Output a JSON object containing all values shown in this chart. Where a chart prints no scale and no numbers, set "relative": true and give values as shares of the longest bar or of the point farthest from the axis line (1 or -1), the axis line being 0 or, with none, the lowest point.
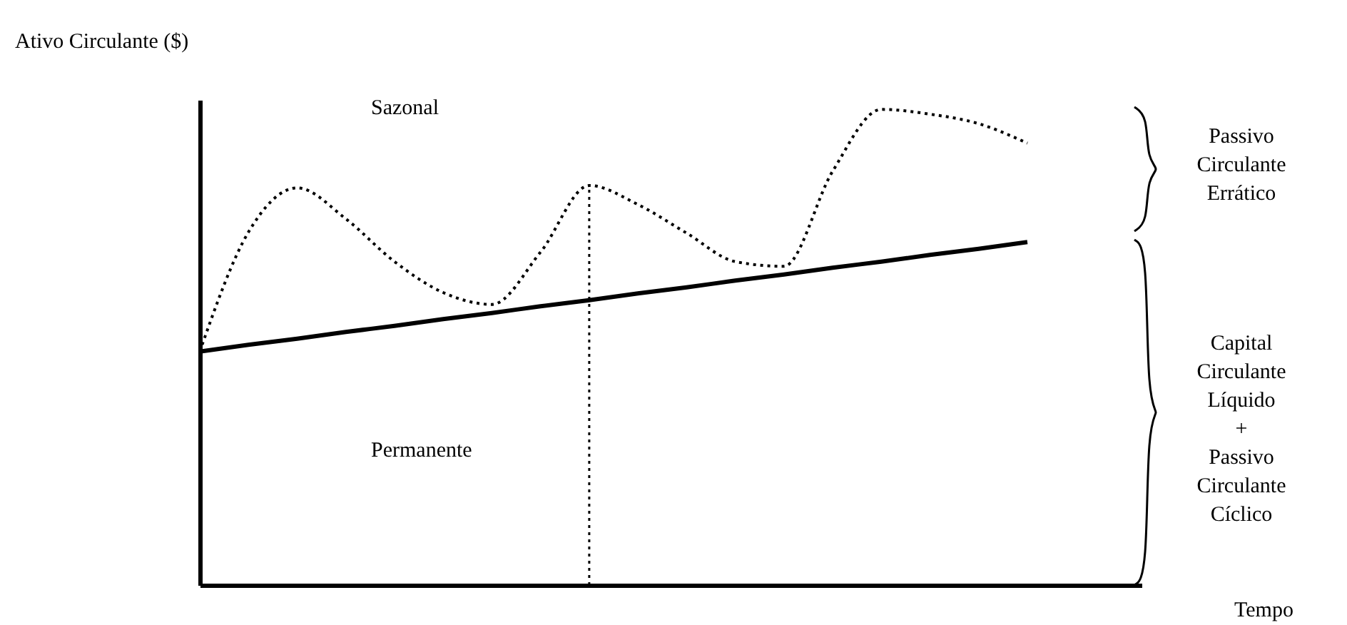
{
  "chart_data": {
    "type": "line",
    "relative": true,
    "ylabel": "Ativo Circulante ($)",
    "categories": [
      null,
      null,
      null,
      null,
      null,
      null,
      null,
      null,
      null,
      null,
      null,
      null,
      null,
      null,
      null,
      null,
      null,
      null
    ],
    "series": [
      {
        "color": "#000000",
        "line_style": "dotted",
        "values": [
          0.491,
          0.742,
          0.835,
          0.77,
          0.68,
          0.615,
          0.59,
          0.7,
          0.84,
          0.8,
          0.74,
          0.68,
          0.67,
          0.87,
          1.0,
          0.99,
          0.97,
          0.929
        ]
      },
      {
        "color": "#000000",
        "line_style": "solid",
        "values": [
          0.491,
          0.505,
          0.518,
          0.532,
          0.545,
          0.559,
          0.572,
          0.586,
          0.599,
          0.613,
          0.626,
          0.64,
          0.653,
          0.667,
          0.68,
          0.694,
          0.707,
          0.721
        ]
      }
    ],
    "annotations": [
      "Sazonal",
      "Permanente",
      "Passivo Circulante Errático",
      "Capital Circulante Líquido + Passivo Circulante Cíclico",
      "Tempo"
    ],
    "grid": false,
    "marker": "none"
  }
}
